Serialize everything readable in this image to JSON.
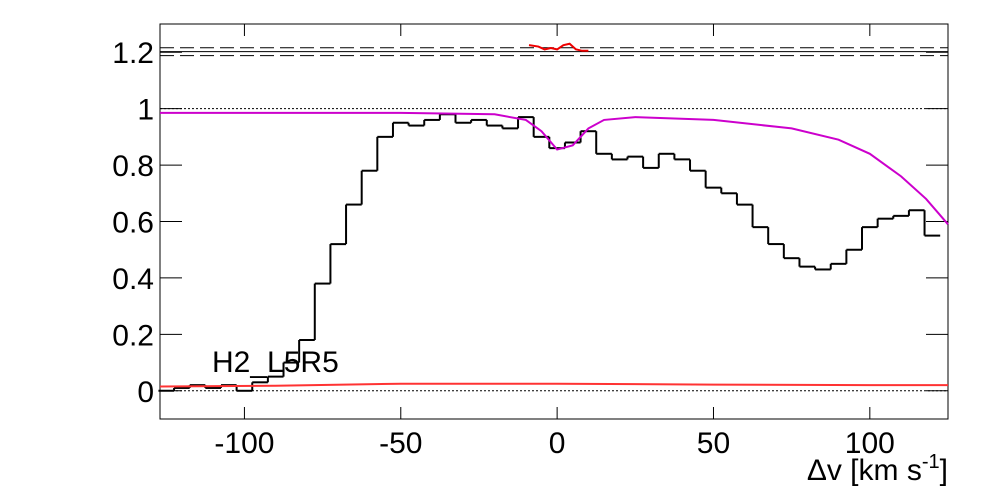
{
  "chart_data": {
    "type": "histogram",
    "color": "#000000",
    "bins": [
      -127.5,
      -122.5,
      -117.5,
      -112.5,
      -107.5,
      -102.5,
      -97.5,
      -92.5,
      -87.5,
      -82.5,
      -77.5,
      -72.5,
      -67.5,
      -62.5,
      -57.5,
      -52.5,
      -47.5,
      -42.5,
      -37.5,
      -32.5,
      -27.5,
      -22.5,
      -17.5,
      -12.5,
      -7.5,
      -2.5,
      2.5,
      7.5,
      12.5,
      17.5,
      22.5,
      27.5,
      32.5,
      37.5,
      42.5,
      47.5,
      52.5,
      57.5,
      62.5,
      67.5,
      72.5,
      77.5,
      82.5,
      87.5,
      92.5,
      97.5,
      102.5,
      107.5,
      112.5,
      117.5,
      122.5
    ],
    "values": [
      0.0,
      0.01,
      0.02,
      0.01,
      0.02,
      0.0,
      0.03,
      0.05,
      0.1,
      0.18,
      0.38,
      0.52,
      0.66,
      0.78,
      0.9,
      0.95,
      0.94,
      0.96,
      0.98,
      0.95,
      0.96,
      0.94,
      0.93,
      0.97,
      0.9,
      0.86,
      0.88,
      0.92,
      0.84,
      0.82,
      0.83,
      0.79,
      0.84,
      0.82,
      0.78,
      0.72,
      0.7,
      0.66,
      0.58,
      0.52,
      0.47,
      0.44,
      0.43,
      0.45,
      0.5,
      0.58,
      0.61,
      0.62,
      0.64,
      0.55
    ],
    "overlays": [
      {
        "type": "line",
        "color": "#cc00cc",
        "x": [
          -127,
          -50,
          -20,
          -10,
          -5,
          0,
          5,
          10,
          15,
          25,
          50,
          75,
          90,
          100,
          110,
          118,
          125
        ],
        "values": [
          0.985,
          0.985,
          0.98,
          0.96,
          0.92,
          0.855,
          0.87,
          0.93,
          0.96,
          0.97,
          0.96,
          0.93,
          0.89,
          0.84,
          0.76,
          0.68,
          0.59
        ]
      },
      {
        "type": "line",
        "color": "#ff3333",
        "x": [
          -127,
          -90,
          -50,
          0,
          50,
          100,
          125
        ],
        "values": [
          0.015,
          0.018,
          0.025,
          0.025,
          0.022,
          0.02,
          0.02
        ]
      },
      {
        "type": "line",
        "color": "#ee0000",
        "x": [
          -9,
          -6,
          -4,
          -2,
          0,
          2,
          4,
          6,
          8,
          10
        ],
        "values": [
          1.225,
          1.22,
          1.21,
          1.215,
          1.21,
          1.225,
          1.23,
          1.21,
          1.205,
          1.205
        ]
      }
    ],
    "hlines": [
      {
        "y": 1.216,
        "style": "dashed"
      },
      {
        "y": 1.202,
        "style": "solid"
      },
      {
        "y": 1.188,
        "style": "dashed"
      },
      {
        "y": 1,
        "style": "dotted"
      },
      {
        "y": 0,
        "style": "dotted"
      }
    ],
    "annotation": "H2_L5R5",
    "x_label": {
      "main": "Δv [km s",
      "sup": "-1",
      "close": "]"
    },
    "xlim": [
      -127,
      125
    ],
    "ylim": [
      -0.1,
      1.3
    ],
    "xticks": [
      -100,
      -50,
      0,
      50,
      100
    ],
    "yticks": [
      0,
      0.2,
      0.4,
      0.6,
      0.8,
      1,
      1.2
    ]
  }
}
